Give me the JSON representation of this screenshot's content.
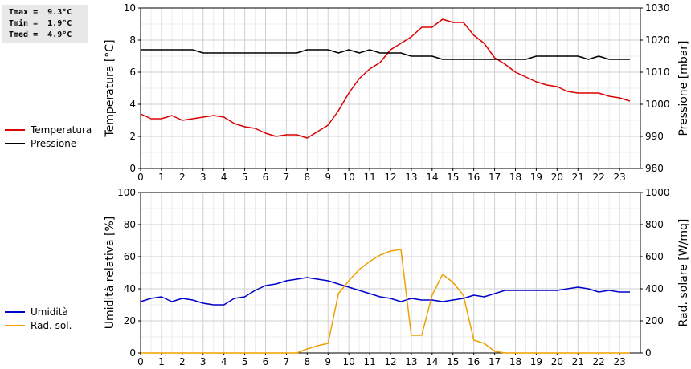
{
  "stats": [
    "Tmax =  9.3°C",
    "Tmin =  1.9°C",
    "Tmed =  4.9°C"
  ],
  "chart_data": [
    {
      "type": "line",
      "x_ticks": [
        "0",
        "1",
        "2",
        "3",
        "4",
        "5",
        "6",
        "7",
        "8",
        "9",
        "10",
        "11",
        "12",
        "13",
        "14",
        "15",
        "16",
        "17",
        "18",
        "19",
        "20",
        "21",
        "22",
        "23"
      ],
      "xlim": [
        0,
        24
      ],
      "ylabel_left": "Temperatura [°C]",
      "ylabel_right": "Pressione [mbar]",
      "ylim_left": [
        0,
        10
      ],
      "ylim_right": [
        980,
        1030
      ],
      "yticks_left": [
        "0",
        "2",
        "4",
        "6",
        "8",
        "10"
      ],
      "yticks_right": [
        "980",
        "990",
        "1000",
        "1010",
        "1020",
        "1030"
      ],
      "grid": true,
      "legend_position": "left",
      "series": [
        {
          "name": "Temperatura",
          "axis": "left",
          "color": "#dd0000",
          "x": [
            0,
            0.5,
            1,
            1.5,
            2,
            2.5,
            3,
            3.5,
            4,
            4.5,
            5,
            5.5,
            6,
            6.5,
            7,
            7.5,
            8,
            8.5,
            9,
            9.5,
            10,
            10.5,
            11,
            11.5,
            12,
            12.5,
            13,
            13.5,
            14,
            14.5,
            15,
            15.5,
            16,
            16.5,
            17,
            17.5,
            18,
            18.5,
            19,
            19.5,
            20,
            20.5,
            21,
            21.5,
            22,
            22.5,
            23,
            23.5
          ],
          "y": [
            3.4,
            3.1,
            3.1,
            3.3,
            3.0,
            3.1,
            3.2,
            3.3,
            3.2,
            2.8,
            2.6,
            2.5,
            2.2,
            2.0,
            2.1,
            2.1,
            1.9,
            2.3,
            2.7,
            3.6,
            4.7,
            5.6,
            6.2,
            6.6,
            7.4,
            7.8,
            8.2,
            8.8,
            8.8,
            9.3,
            9.1,
            9.1,
            8.3,
            7.8,
            6.9,
            6.5,
            6.0,
            5.7,
            5.4,
            5.2,
            5.1,
            4.8,
            4.7,
            4.7,
            4.7,
            4.5,
            4.4,
            4.2
          ]
        },
        {
          "name": "Pressione",
          "axis": "right",
          "color": "#000000",
          "x": [
            0,
            0.5,
            1,
            1.5,
            2,
            2.5,
            3,
            3.5,
            4,
            4.5,
            5,
            5.5,
            6,
            6.5,
            7,
            7.5,
            8,
            8.5,
            9,
            9.5,
            10,
            10.5,
            11,
            11.5,
            12,
            12.5,
            13,
            13.5,
            14,
            14.5,
            15,
            15.5,
            16,
            16.5,
            17,
            17.5,
            18,
            18.5,
            19,
            19.5,
            20,
            20.5,
            21,
            21.5,
            22,
            22.5,
            23,
            23.5
          ],
          "y": [
            1017,
            1017,
            1017,
            1017,
            1017,
            1017,
            1016,
            1016,
            1016,
            1016,
            1016,
            1016,
            1016,
            1016,
            1016,
            1016,
            1017,
            1017,
            1017,
            1016,
            1017,
            1016,
            1017,
            1016,
            1016,
            1016,
            1015,
            1015,
            1015,
            1014,
            1014,
            1014,
            1014,
            1014,
            1014,
            1014,
            1014,
            1014,
            1015,
            1015,
            1015,
            1015,
            1015,
            1014,
            1015,
            1014,
            1014,
            1014
          ]
        }
      ]
    },
    {
      "type": "line",
      "x_ticks": [
        "0",
        "1",
        "2",
        "3",
        "4",
        "5",
        "6",
        "7",
        "8",
        "9",
        "10",
        "11",
        "12",
        "13",
        "14",
        "15",
        "16",
        "17",
        "18",
        "19",
        "20",
        "21",
        "22",
        "23"
      ],
      "xlim": [
        0,
        24
      ],
      "ylabel_left": "Umidità relativa [%]",
      "ylabel_right": "Rad. solare [W/mq]",
      "ylim_left": [
        0,
        100
      ],
      "ylim_right": [
        0,
        1000
      ],
      "yticks_left": [
        "0",
        "20",
        "40",
        "60",
        "80",
        "100"
      ],
      "yticks_right": [
        "0",
        "200",
        "400",
        "600",
        "800",
        "1000"
      ],
      "grid": true,
      "legend_position": "left",
      "series": [
        {
          "name": "Umidità",
          "axis": "left",
          "color": "#0000cc",
          "x": [
            0,
            0.5,
            1,
            1.5,
            2,
            2.5,
            3,
            3.5,
            4,
            4.5,
            5,
            5.5,
            6,
            6.5,
            7,
            7.5,
            8,
            8.5,
            9,
            9.5,
            10,
            10.5,
            11,
            11.5,
            12,
            12.5,
            13,
            13.5,
            14,
            14.5,
            15,
            15.5,
            16,
            16.5,
            17,
            17.5,
            18,
            18.5,
            19,
            19.5,
            20,
            20.5,
            21,
            21.5,
            22,
            22.5,
            23,
            23.5
          ],
          "y": [
            32,
            34,
            35,
            32,
            34,
            33,
            31,
            30,
            30,
            34,
            35,
            39,
            42,
            43,
            45,
            46,
            47,
            46,
            45,
            43,
            41,
            39,
            37,
            35,
            34,
            32,
            34,
            33,
            33,
            32,
            33,
            34,
            36,
            35,
            37,
            39,
            39,
            39,
            39,
            39,
            39,
            40,
            41,
            40,
            38,
            39,
            38,
            38
          ]
        },
        {
          "name": "Rad. sol.",
          "axis": "right",
          "color": "#f0a000",
          "x": [
            0,
            1,
            2,
            3,
            4,
            5,
            6,
            7,
            7.5,
            8,
            8.5,
            9,
            9.5,
            10,
            10.5,
            11,
            11.5,
            12,
            12.5,
            13,
            13.5,
            14,
            14.5,
            15,
            15.5,
            16,
            16.5,
            17,
            17.5,
            18,
            19,
            20,
            21,
            22,
            23,
            23.5
          ],
          "y": [
            0,
            0,
            0,
            0,
            0,
            0,
            0,
            0,
            0,
            25,
            45,
            60,
            370,
            450,
            520,
            570,
            610,
            635,
            645,
            110,
            110,
            360,
            490,
            440,
            360,
            80,
            60,
            10,
            0,
            0,
            0,
            0,
            0,
            0,
            0,
            0
          ]
        }
      ]
    }
  ]
}
